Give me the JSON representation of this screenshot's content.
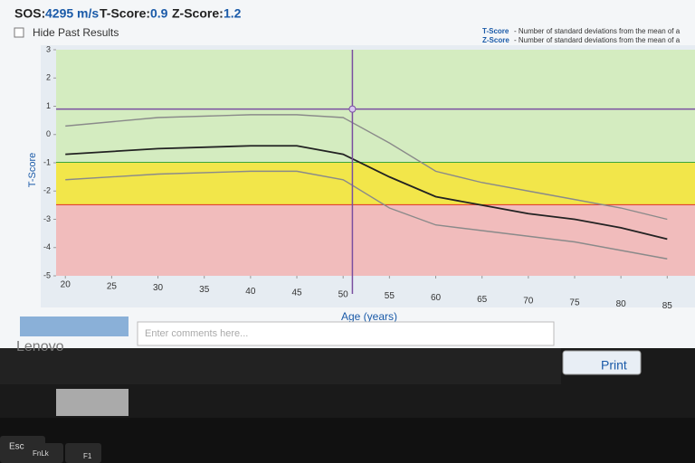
{
  "header": {
    "sos_label": "SOS:",
    "sos_value": "4295 m/s",
    "t_label": "T-Score:",
    "t_score": 0.9,
    "z_label": "Z-Score:",
    "z_score": 1.2
  },
  "options": {
    "hide_past": "Hide Past Results"
  },
  "notes": [
    {
      "term": "T-Score",
      "text": "- Number of standard deviations from the mean of a"
    },
    {
      "term": "Z-Score",
      "text": "- Number of standard deviations from the mean of a"
    }
  ],
  "chart_data": {
    "type": "line",
    "x_label": "Age (years)",
    "y_label": "T-Score",
    "x": [
      20,
      30,
      40,
      45,
      50,
      55,
      60,
      65,
      70,
      75,
      80,
      85
    ],
    "series": [
      {
        "color": "#8a8a8a",
        "values": [
          0.3,
          0.6,
          0.7,
          0.7,
          0.6,
          -0.3,
          -1.3,
          -1.7,
          -2.0,
          -2.3,
          -2.6,
          -3.0
        ]
      },
      {
        "color": "#222222",
        "values": [
          -0.7,
          -0.5,
          -0.4,
          -0.4,
          -0.7,
          -1.5,
          -2.2,
          -2.5,
          -2.8,
          -3.0,
          -3.3,
          -3.7
        ]
      },
      {
        "color": "#8a8a8a",
        "values": [
          -1.6,
          -1.4,
          -1.3,
          -1.3,
          -1.6,
          -2.6,
          -3.2,
          -3.4,
          -3.6,
          -3.8,
          -4.1,
          -4.4
        ]
      }
    ],
    "zones": [
      {
        "from": 3,
        "to": -1,
        "color": "#d4ecc0",
        "line": "#3aa63a"
      },
      {
        "from": -1,
        "to": -2.5,
        "color": "#f2e64a",
        "line": "#e03020"
      },
      {
        "from": -2.5,
        "to": -5,
        "color": "#f1bcbc",
        "line": null
      }
    ],
    "patient_age": 51,
    "crosshair_color": "#7a4fa0",
    "xlim": [
      19,
      88
    ],
    "xticks": [
      20,
      25,
      30,
      35,
      40,
      45,
      50,
      55,
      60,
      65,
      70,
      75,
      80,
      85
    ],
    "ylim": [
      -5,
      3
    ],
    "yticks": [
      -5,
      -4,
      -3,
      -2,
      -1,
      0,
      1,
      2,
      3
    ]
  },
  "comments": {
    "placeholder": "Enter comments here..."
  },
  "buttons": {
    "print": "Print"
  },
  "laptop": {
    "brand": "Lenovo",
    "keys": [
      "Esc",
      "FnLk",
      "F1"
    ]
  }
}
